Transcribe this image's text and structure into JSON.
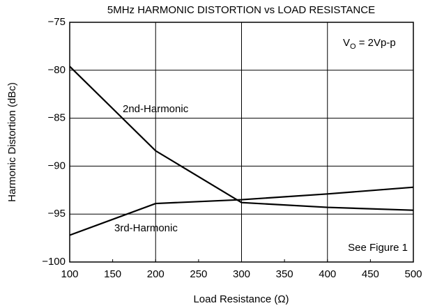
{
  "chart_data": {
    "type": "line",
    "title": "5MHz HARMONIC DISTORTION vs LOAD RESISTANCE",
    "xlabel": "Load Resistance (Ω)",
    "ylabel": "Harmonic Distortion (dBc)",
    "x": [
      100,
      200,
      300,
      400,
      500
    ],
    "series": [
      {
        "name": "2nd-Harmonic",
        "color": "#000000",
        "values": [
          -79.6,
          -88.4,
          -93.8,
          -94.3,
          -94.6
        ]
      },
      {
        "name": "3rd-Harmonic",
        "color": "#000000",
        "values": [
          -97.2,
          -93.9,
          -93.5,
          -92.9,
          -92.2
        ]
      }
    ],
    "xlim": [
      100,
      500
    ],
    "xticks": [
      100,
      150,
      200,
      250,
      300,
      350,
      400,
      450,
      500
    ],
    "ylim": [
      -100,
      -75
    ],
    "yticks": [
      {
        "value": -75,
        "label": "−75"
      },
      {
        "value": -80,
        "label": "−80"
      },
      {
        "value": -85,
        "label": "−85"
      },
      {
        "value": -90,
        "label": "−90"
      },
      {
        "value": -95,
        "label": "−95"
      },
      {
        "value": -100,
        "label": "−100"
      }
    ],
    "grid": true,
    "condition": {
      "symbol": "V",
      "subscript": "O",
      "text": " = 2Vp-p"
    },
    "note": "See Figure 1"
  }
}
